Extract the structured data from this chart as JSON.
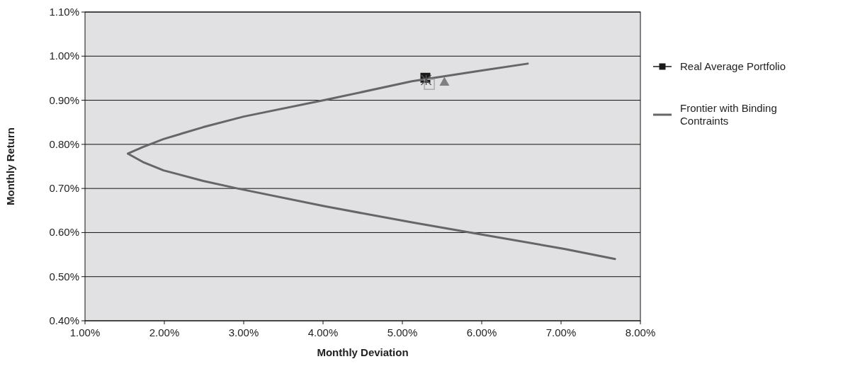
{
  "chart_data": {
    "type": "scatter",
    "xlabel": "Monthly Deviation",
    "ylabel": "Monthly Return",
    "xlim": [
      1,
      8
    ],
    "xticks": [
      {
        "value": 1,
        "label": "1.00%"
      },
      {
        "value": 2,
        "label": "2.00%"
      },
      {
        "value": 3,
        "label": "3.00%"
      },
      {
        "value": 4,
        "label": "4.00%"
      },
      {
        "value": 5,
        "label": "5.00%"
      },
      {
        "value": 6,
        "label": "6.00%"
      },
      {
        "value": 7,
        "label": "7.00%"
      },
      {
        "value": 8,
        "label": "8.00%"
      }
    ],
    "ylim": [
      0.4,
      1.1
    ],
    "yticks": [
      {
        "value": 0.4,
        "label": "0.40%"
      },
      {
        "value": 0.5,
        "label": "0.50%"
      },
      {
        "value": 0.6,
        "label": "0.60%"
      },
      {
        "value": 0.7,
        "label": "0.70%"
      },
      {
        "value": 0.8,
        "label": "0.80%"
      },
      {
        "value": 0.9,
        "label": "0.90%"
      },
      {
        "value": 1.0,
        "label": "1.00%"
      },
      {
        "value": 1.1,
        "label": "1.10%"
      }
    ],
    "grid": "y",
    "legend": "right",
    "series": [
      {
        "name": "Real Average Portfolio",
        "marker": "square",
        "color": "#1a1a1a",
        "x": [
          5.29
        ],
        "values": [
          0.951
        ]
      },
      {
        "name": "Frontier with Binding Contraints",
        "type": "line",
        "marker": "none",
        "color": "#666666",
        "x": [
          7.68,
          7.04,
          5.99,
          5.12,
          4.01,
          2.92,
          2.49,
          1.99,
          1.73,
          1.54,
          1.73,
          1.99,
          2.49,
          3.0,
          4.01,
          5.12,
          5.99,
          6.58
        ],
        "values": [
          0.54,
          0.563,
          0.596,
          0.623,
          0.66,
          0.7,
          0.717,
          0.741,
          0.76,
          0.779,
          0.794,
          0.812,
          0.839,
          0.863,
          0.9,
          0.943,
          0.967,
          0.983
        ]
      },
      {
        "marker": "triangle",
        "color": "#808080",
        "x": [
          5.53
        ],
        "values": [
          0.942
        ]
      },
      {
        "marker": "square",
        "color": "#aaaaaa",
        "x": [
          5.34
        ],
        "values": [
          0.936
        ]
      },
      {
        "marker": "cross",
        "color": "#555555",
        "x": [
          5.3
        ],
        "values": [
          0.946
        ]
      }
    ]
  }
}
